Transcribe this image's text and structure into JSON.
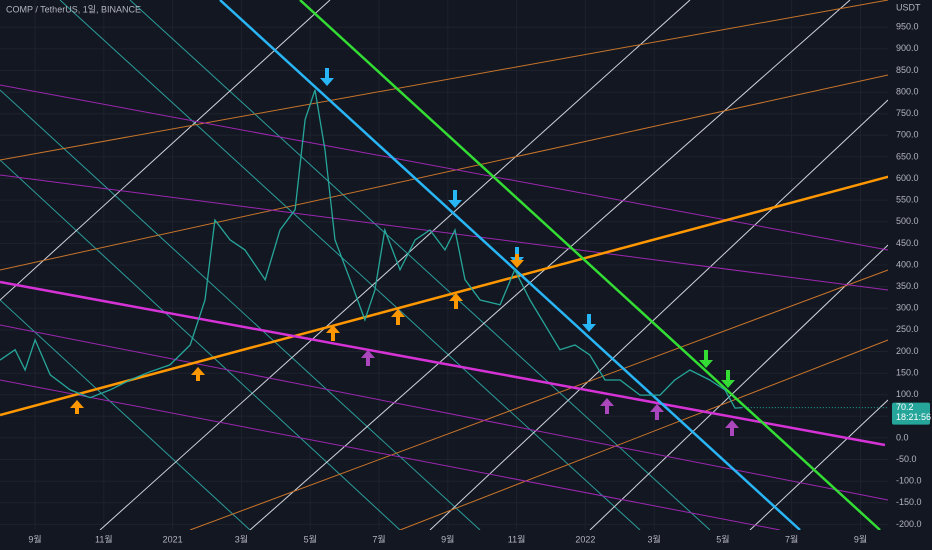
{
  "chart_data": {
    "type": "line",
    "title": "COMP / TetherUS, 1일, BINANCE",
    "y_unit": "USDT",
    "last_price": "70.2",
    "countdown": "18:21:56",
    "xlim": [
      -1.02,
      24.8
    ],
    "xticks": [
      {
        "value": 0,
        "label": "9월"
      },
      {
        "value": 2,
        "label": "11월"
      },
      {
        "value": 4,
        "label": "2021"
      },
      {
        "value": 6,
        "label": "3월"
      },
      {
        "value": 8,
        "label": "5월"
      },
      {
        "value": 10,
        "label": "7월"
      },
      {
        "value": 12,
        "label": "9월"
      },
      {
        "value": 14,
        "label": "11월"
      },
      {
        "value": 16,
        "label": "2022"
      },
      {
        "value": 18,
        "label": "3월"
      },
      {
        "value": 20,
        "label": "5월"
      },
      {
        "value": 22,
        "label": "7월"
      },
      {
        "value": 24,
        "label": "9월"
      }
    ],
    "ylim": [
      -213,
      1013
    ],
    "yticks": [
      {
        "value": -200,
        "label": "-200.0"
      },
      {
        "value": -150,
        "label": "-150.0"
      },
      {
        "value": -100,
        "label": "-100.0"
      },
      {
        "value": -50,
        "label": "-50.0"
      },
      {
        "value": 0,
        "label": "0.0"
      },
      {
        "value": 50,
        "label": "50.0"
      },
      {
        "value": 100,
        "label": "100.0"
      },
      {
        "value": 150,
        "label": "150.0"
      },
      {
        "value": 200,
        "label": "200.0"
      },
      {
        "value": 250,
        "label": "250.0"
      },
      {
        "value": 300,
        "label": "300.0"
      },
      {
        "value": 350,
        "label": "350.0"
      },
      {
        "value": 400,
        "label": "400.0"
      },
      {
        "value": 450,
        "label": "450.0"
      },
      {
        "value": 500,
        "label": "500.0"
      },
      {
        "value": 550,
        "label": "550.0"
      },
      {
        "value": 600,
        "label": "600.0"
      },
      {
        "value": 650,
        "label": "650.0"
      },
      {
        "value": 700,
        "label": "700.0"
      },
      {
        "value": 750,
        "label": "750.0"
      },
      {
        "value": 800,
        "label": "800.0"
      },
      {
        "value": 850,
        "label": "850.0"
      },
      {
        "value": 900,
        "label": "900.0"
      },
      {
        "value": 950,
        "label": "950.0"
      }
    ],
    "grid": true,
    "series": [
      {
        "color": "#26a69a",
        "x": [
          -1.02,
          -0.58,
          -0.29,
          0,
          0.44,
          1.02,
          1.6,
          2.18,
          2.76,
          3.34,
          3.92,
          4.51,
          4.94,
          5.23,
          5.67,
          6.1,
          6.69,
          7.12,
          7.56,
          7.85,
          8.14,
          8.43,
          8.72,
          9.16,
          9.59,
          9.88,
          10.17,
          10.61,
          11.05,
          11.48,
          11.92,
          12.21,
          12.5,
          12.94,
          13.52,
          13.95,
          14.39,
          14.83,
          15.26,
          15.7,
          16.13,
          16.57,
          17.01,
          17.59,
          18.17,
          18.6,
          19.04,
          19.62,
          20.06,
          20.35,
          20.55
        ],
        "values": [
          180,
          204,
          157,
          227,
          146,
          111,
          93,
          111,
          134,
          153,
          169,
          215,
          319,
          504,
          458,
          435,
          366,
          481,
          528,
          736,
          805,
          666,
          458,
          366,
          273,
          342,
          481,
          389,
          458,
          481,
          435,
          481,
          366,
          319,
          308,
          389,
          319,
          261,
          204,
          215,
          192,
          134,
          134,
          99,
          99,
          134,
          157,
          134,
          111,
          69,
          70.2
        ]
      }
    ]
  }
}
